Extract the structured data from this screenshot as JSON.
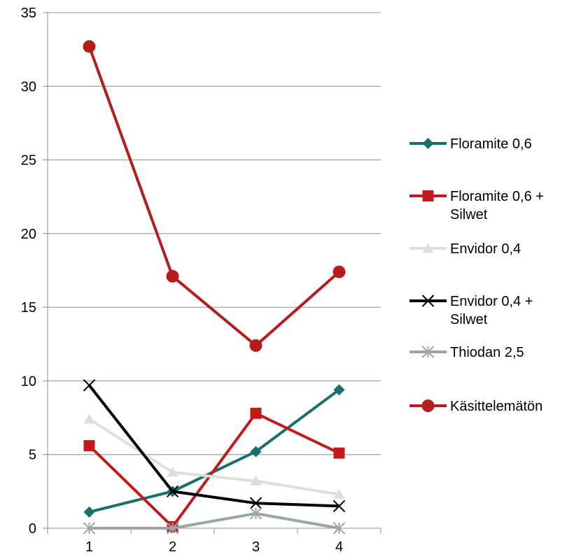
{
  "chart_data": {
    "type": "line",
    "title": "",
    "xlabel": "",
    "ylabel": "",
    "x": [
      1,
      2,
      3,
      4
    ],
    "x_tick_labels": [
      "1",
      "2",
      "3",
      "4"
    ],
    "ylim": [
      0,
      35
    ],
    "y_ticks": [
      0,
      5,
      10,
      15,
      20,
      25,
      30,
      35
    ],
    "y_tick_labels": [
      "0",
      "5",
      "10",
      "15",
      "20",
      "25",
      "30",
      "35"
    ],
    "grid": "horizontal",
    "legend_position": "right",
    "series": [
      {
        "name": [
          "Floramite 0,6"
        ],
        "color": "#17706b",
        "marker": "diamond",
        "values": [
          1.1,
          2.5,
          5.2,
          9.4
        ]
      },
      {
        "name": [
          "Floramite 0,6 +",
          "Silwet"
        ],
        "color": "#c21b1b",
        "marker": "square",
        "values": [
          5.6,
          0.1,
          7.8,
          5.1
        ]
      },
      {
        "name": [
          "Envidor 0,4"
        ],
        "color": "#dedede",
        "marker": "triangle",
        "values": [
          7.4,
          3.8,
          3.2,
          2.3
        ]
      },
      {
        "name": [
          "Envidor 0,4 +",
          "Silwet"
        ],
        "color": "#000000",
        "marker": "x",
        "values": [
          9.7,
          2.5,
          1.7,
          1.5
        ]
      },
      {
        "name": [
          "Thiodan 2,5"
        ],
        "color": "#9aa5a5",
        "marker": "star",
        "values": [
          0.0,
          0.0,
          1.0,
          0.0
        ]
      },
      {
        "name": [
          "Käsittelemätön"
        ],
        "color": "#b71c1c",
        "marker": "circle",
        "values": [
          32.7,
          17.1,
          12.4,
          17.4
        ]
      }
    ]
  }
}
